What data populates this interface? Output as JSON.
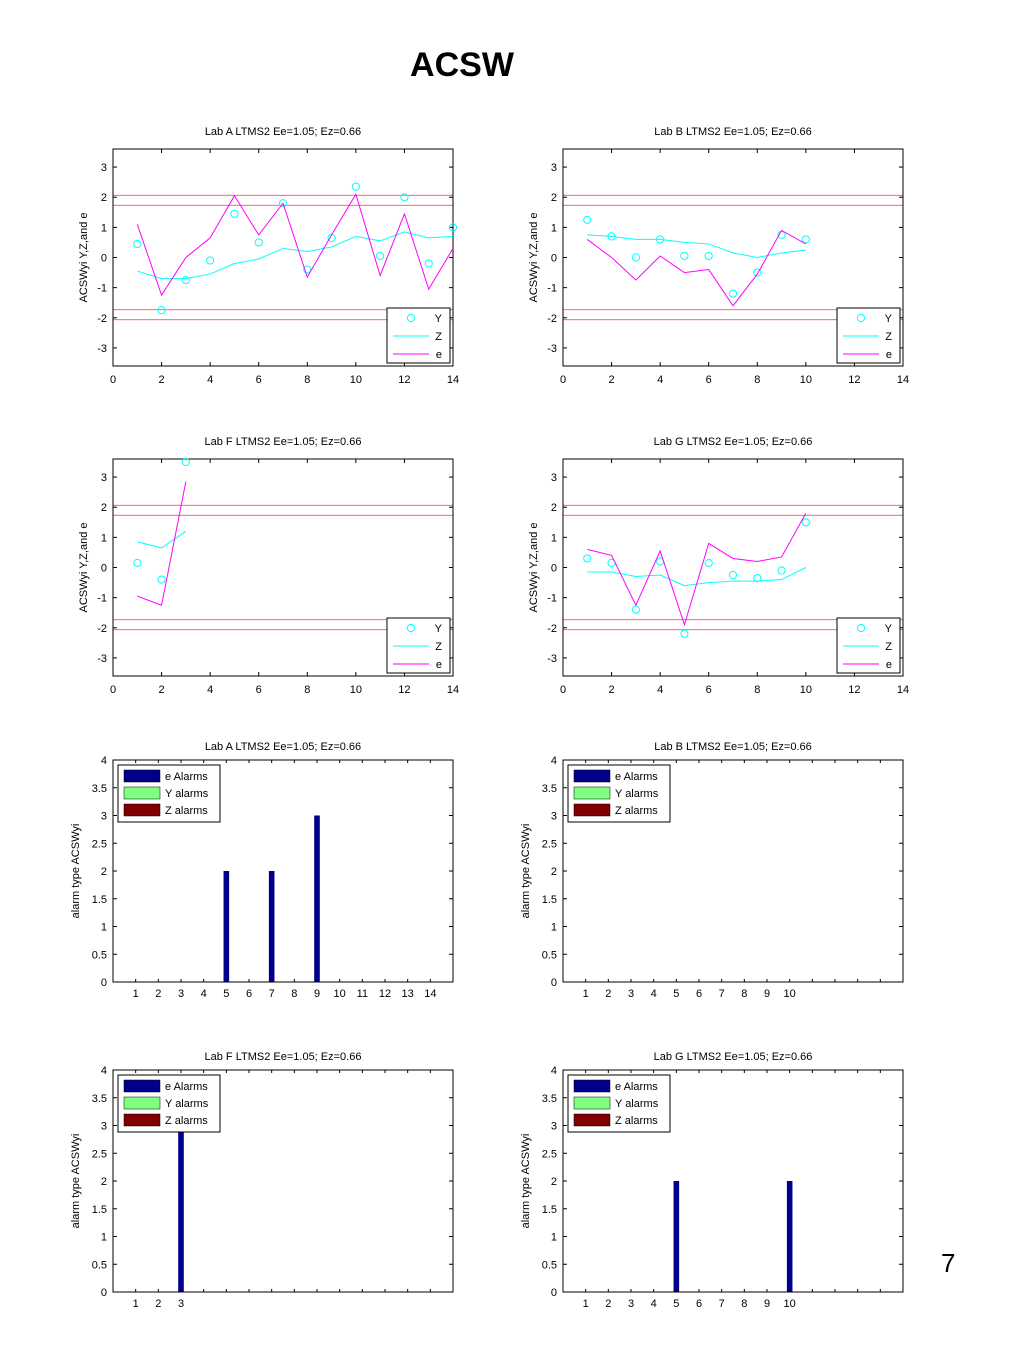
{
  "page": {
    "title": "ACSW",
    "page_number": "7"
  },
  "chart_data": [
    {
      "type": "line",
      "title": "Lab A LTMS2 Ee=1.05; Ez=0.66",
      "ylabel": "ACSWyi Y,Z,and e",
      "xlim": [
        0,
        14
      ],
      "ylim": [
        -3.6,
        3.6
      ],
      "xticks": [
        0,
        2,
        4,
        6,
        8,
        10,
        12,
        14
      ],
      "yticks": [
        -3,
        -2,
        -1,
        0,
        1,
        2,
        3
      ],
      "limit_lines": [
        2.066,
        1.734,
        -1.734,
        -2.066
      ],
      "legend": {
        "position": "bottom-right",
        "entries": [
          "Y",
          "Z",
          "e"
        ]
      },
      "series": [
        {
          "name": "Y",
          "style": "circles",
          "color": "#00ffff",
          "x": [
            1,
            2,
            3,
            4,
            5,
            6,
            7,
            8,
            9,
            10,
            11,
            12,
            13,
            14
          ],
          "y": [
            0.45,
            -1.75,
            -0.75,
            -0.1,
            1.45,
            0.5,
            1.8,
            -0.4,
            0.65,
            2.35,
            0.05,
            2.0,
            -0.2,
            1.0
          ]
        },
        {
          "name": "Z",
          "style": "line",
          "color": "#00ffff",
          "x": [
            1,
            2,
            3,
            4,
            5,
            6,
            7,
            8,
            9,
            10,
            11,
            12,
            13,
            14
          ],
          "y": [
            -0.45,
            -0.7,
            -0.7,
            -0.55,
            -0.2,
            -0.05,
            0.3,
            0.2,
            0.35,
            0.7,
            0.55,
            0.85,
            0.65,
            0.7
          ]
        },
        {
          "name": "e",
          "style": "line",
          "color": "#ff00ff",
          "x": [
            1,
            2,
            3,
            4,
            5,
            6,
            7,
            8,
            9,
            10,
            11,
            12,
            13,
            14
          ],
          "y": [
            1.1,
            -1.25,
            0.0,
            0.65,
            2.05,
            0.75,
            1.8,
            -0.65,
            0.75,
            2.1,
            -0.6,
            1.45,
            -1.05,
            0.3
          ]
        }
      ]
    },
    {
      "type": "line",
      "title": "Lab B LTMS2 Ee=1.05; Ez=0.66",
      "ylabel": "ACSWyi Y,Z,and e",
      "xlim": [
        0,
        14
      ],
      "ylim": [
        -3.6,
        3.6
      ],
      "xticks": [
        0,
        2,
        4,
        6,
        8,
        10,
        12,
        14
      ],
      "yticks": [
        -3,
        -2,
        -1,
        0,
        1,
        2,
        3
      ],
      "limit_lines": [
        2.066,
        1.734,
        -1.734,
        -2.066
      ],
      "legend": {
        "position": "bottom-right",
        "entries": [
          "Y",
          "Z",
          "e"
        ]
      },
      "series": [
        {
          "name": "Y",
          "style": "circles",
          "color": "#00ffff",
          "x": [
            1,
            2,
            3,
            4,
            5,
            6,
            7,
            8,
            9,
            10
          ],
          "y": [
            1.25,
            0.7,
            0.0,
            0.6,
            0.05,
            0.05,
            -1.2,
            -0.5,
            0.75,
            0.6
          ]
        },
        {
          "name": "Z",
          "style": "line",
          "color": "#00ffff",
          "x": [
            1,
            2,
            3,
            4,
            5,
            6,
            7,
            8,
            9,
            10
          ],
          "y": [
            0.75,
            0.7,
            0.6,
            0.6,
            0.5,
            0.45,
            0.15,
            0.0,
            0.15,
            0.25
          ]
        },
        {
          "name": "e",
          "style": "line",
          "color": "#ff00ff",
          "x": [
            1,
            2,
            3,
            4,
            5,
            6,
            7,
            8,
            9,
            10
          ],
          "y": [
            0.6,
            0.0,
            -0.75,
            0.05,
            -0.5,
            -0.4,
            -1.6,
            -0.55,
            0.9,
            0.45
          ]
        }
      ]
    },
    {
      "type": "line",
      "title": "Lab F LTMS2 Ee=1.05; Ez=0.66",
      "ylabel": "ACSWyi Y,Z,and e",
      "xlim": [
        0,
        14
      ],
      "ylim": [
        -3.6,
        3.6
      ],
      "xticks": [
        0,
        2,
        4,
        6,
        8,
        10,
        12,
        14
      ],
      "yticks": [
        -3,
        -2,
        -1,
        0,
        1,
        2,
        3
      ],
      "limit_lines": [
        2.066,
        1.734,
        -1.734,
        -2.066
      ],
      "legend": {
        "position": "bottom-right",
        "entries": [
          "Y",
          "Z",
          "e"
        ]
      },
      "series": [
        {
          "name": "Y",
          "style": "circles",
          "color": "#00ffff",
          "x": [
            1,
            2,
            3
          ],
          "y": [
            0.15,
            -0.4,
            3.5
          ]
        },
        {
          "name": "Z",
          "style": "line",
          "color": "#00ffff",
          "x": [
            1,
            2,
            3
          ],
          "y": [
            0.85,
            0.65,
            1.2
          ]
        },
        {
          "name": "e",
          "style": "line",
          "color": "#ff00ff",
          "x": [
            1,
            2,
            3
          ],
          "y": [
            -0.95,
            -1.25,
            2.85
          ]
        }
      ]
    },
    {
      "type": "line",
      "title": "Lab G LTMS2 Ee=1.05; Ez=0.66",
      "ylabel": "ACSWyi Y,Z,and e",
      "xlim": [
        0,
        14
      ],
      "ylim": [
        -3.6,
        3.6
      ],
      "xticks": [
        0,
        2,
        4,
        6,
        8,
        10,
        12,
        14
      ],
      "yticks": [
        -3,
        -2,
        -1,
        0,
        1,
        2,
        3
      ],
      "limit_lines": [
        2.066,
        1.734,
        -1.734,
        -2.066
      ],
      "legend": {
        "position": "bottom-right",
        "entries": [
          "Y",
          "Z",
          "e"
        ]
      },
      "series": [
        {
          "name": "Y",
          "style": "circles",
          "color": "#00ffff",
          "x": [
            1,
            2,
            3,
            4,
            5,
            6,
            7,
            8,
            9,
            10
          ],
          "y": [
            0.3,
            0.15,
            -1.4,
            0.2,
            -2.2,
            0.15,
            -0.25,
            -0.35,
            -0.1,
            1.5
          ]
        },
        {
          "name": "Z",
          "style": "line",
          "color": "#00ffff",
          "x": [
            1,
            2,
            3,
            4,
            5,
            6,
            7,
            8,
            9,
            10
          ],
          "y": [
            -0.15,
            -0.15,
            -0.3,
            -0.25,
            -0.6,
            -0.5,
            -0.45,
            -0.45,
            -0.4,
            0.0
          ]
        },
        {
          "name": "e",
          "style": "line",
          "color": "#ff00ff",
          "x": [
            1,
            2,
            3,
            4,
            5,
            6,
            7,
            8,
            9,
            10
          ],
          "y": [
            0.6,
            0.4,
            -1.25,
            0.55,
            -1.9,
            0.8,
            0.3,
            0.2,
            0.35,
            1.8
          ]
        }
      ]
    },
    {
      "type": "bar",
      "title": "Lab A LTMS2 Ee=1.05; Ez=0.66",
      "ylabel": "alarm type ACSWyi",
      "xlim": [
        0,
        15
      ],
      "ylim": [
        0,
        4
      ],
      "categories": [
        "1",
        "2",
        "3",
        "4",
        "5",
        "6",
        "7",
        "8",
        "9",
        "10",
        "11",
        "12",
        "13",
        "14"
      ],
      "yticks": [
        "0",
        "0.5",
        "1",
        "1.5",
        "2",
        "2.5",
        "3",
        "3.5",
        "4"
      ],
      "legend": {
        "position": "top-left",
        "entries": [
          "e Alarms",
          "Y alarms",
          "Z alarms"
        ]
      },
      "series": [
        {
          "name": "e Alarms",
          "color": "#00008b",
          "values": [
            0,
            0,
            0,
            0,
            2,
            0,
            2,
            0,
            3,
            0,
            0,
            0,
            0,
            0
          ]
        },
        {
          "name": "Y alarms",
          "color": "#80ff80",
          "values": [
            0,
            0,
            0,
            0,
            0,
            0,
            0,
            0,
            0,
            0,
            0,
            0,
            0,
            0
          ]
        },
        {
          "name": "Z alarms",
          "color": "#800000",
          "values": [
            0,
            0,
            0,
            0,
            0,
            0,
            0,
            0,
            0,
            0,
            0,
            0,
            0,
            0
          ]
        }
      ]
    },
    {
      "type": "bar",
      "title": "Lab B LTMS2 Ee=1.05; Ez=0.66",
      "ylabel": "alarm type ACSWyi",
      "xlim": [
        0,
        15
      ],
      "ylim": [
        0,
        4
      ],
      "categories": [
        "1",
        "2",
        "3",
        "4",
        "5",
        "6",
        "7",
        "8",
        "9",
        "10"
      ],
      "yticks": [
        "0",
        "0.5",
        "1",
        "1.5",
        "2",
        "2.5",
        "3",
        "3.5",
        "4"
      ],
      "legend": {
        "position": "top-left",
        "entries": [
          "e Alarms",
          "Y alarms",
          "Z alarms"
        ]
      },
      "series": [
        {
          "name": "e Alarms",
          "color": "#00008b",
          "values": [
            0,
            0,
            0,
            0,
            0,
            0,
            0,
            0,
            0,
            0
          ]
        },
        {
          "name": "Y alarms",
          "color": "#80ff80",
          "values": [
            0,
            0,
            0,
            0,
            0,
            0,
            0,
            0,
            0,
            0
          ]
        },
        {
          "name": "Z alarms",
          "color": "#800000",
          "values": [
            0,
            0,
            0,
            0,
            0,
            0,
            0,
            0,
            0,
            0
          ]
        }
      ]
    },
    {
      "type": "bar",
      "title": "Lab F LTMS2 Ee=1.05; Ez=0.66",
      "ylabel": "alarm type ACSWyi",
      "xlim": [
        0,
        15
      ],
      "ylim": [
        0,
        4
      ],
      "categories": [
        "1",
        "2",
        "3"
      ],
      "yticks": [
        "0",
        "0.5",
        "1",
        "1.5",
        "2",
        "2.5",
        "3",
        "3.5",
        "4"
      ],
      "legend": {
        "position": "top-left",
        "entries": [
          "e Alarms",
          "Y alarms",
          "Z alarms"
        ]
      },
      "series": [
        {
          "name": "e Alarms",
          "color": "#00008b",
          "values": [
            0,
            0,
            3
          ]
        },
        {
          "name": "Y alarms",
          "color": "#80ff80",
          "values": [
            0,
            0,
            0
          ]
        },
        {
          "name": "Z alarms",
          "color": "#800000",
          "values": [
            0,
            0,
            0
          ]
        }
      ]
    },
    {
      "type": "bar",
      "title": "Lab G LTMS2 Ee=1.05; Ez=0.66",
      "ylabel": "alarm type ACSWyi",
      "xlim": [
        0,
        15
      ],
      "ylim": [
        0,
        4
      ],
      "categories": [
        "1",
        "2",
        "3",
        "4",
        "5",
        "6",
        "7",
        "8",
        "9",
        "10"
      ],
      "yticks": [
        "0",
        "0.5",
        "1",
        "1.5",
        "2",
        "2.5",
        "3",
        "3.5",
        "4"
      ],
      "legend": {
        "position": "top-left",
        "entries": [
          "e Alarms",
          "Y alarms",
          "Z alarms"
        ]
      },
      "series": [
        {
          "name": "e Alarms",
          "color": "#00008b",
          "values": [
            0,
            0,
            0,
            0,
            2,
            0,
            0,
            0,
            0,
            2
          ]
        },
        {
          "name": "Y alarms",
          "color": "#80ff80",
          "values": [
            0,
            0,
            0,
            0,
            0,
            0,
            0,
            0,
            0,
            0
          ]
        },
        {
          "name": "Z alarms",
          "color": "#800000",
          "values": [
            0,
            0,
            0,
            0,
            0,
            0,
            0,
            0,
            0,
            0
          ]
        }
      ]
    }
  ]
}
